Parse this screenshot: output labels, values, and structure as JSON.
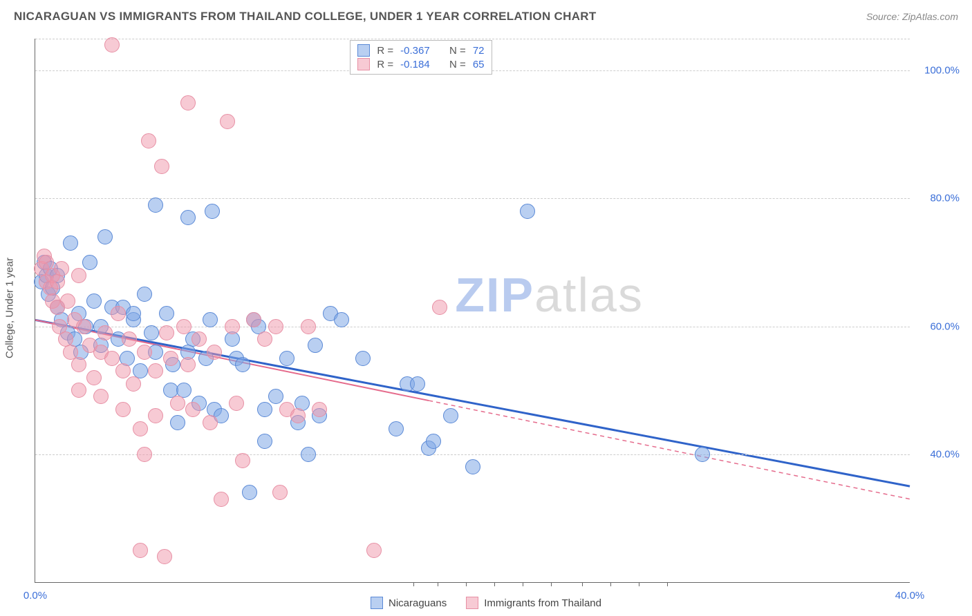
{
  "header": {
    "title": "NICARAGUAN VS IMMIGRANTS FROM THAILAND COLLEGE, UNDER 1 YEAR CORRELATION CHART",
    "source": "Source: ZipAtlas.com"
  },
  "axes": {
    "ylabel": "College, Under 1 year",
    "xmin": 0,
    "xmax": 40,
    "ymin": 20,
    "ymax": 105,
    "xticks": [
      {
        "v": 0,
        "l": "0.0%"
      },
      {
        "v": 40,
        "l": "40.0%"
      }
    ],
    "xtick_minor": [
      17.3,
      18.4,
      19.7,
      21.0,
      22.3,
      23.6,
      25.0,
      26.3,
      27.6,
      28.9
    ],
    "yticks": [
      {
        "v": 40,
        "l": "40.0%"
      },
      {
        "v": 60,
        "l": "60.0%"
      },
      {
        "v": 80,
        "l": "80.0%"
      },
      {
        "v": 100,
        "l": "100.0%"
      },
      {
        "v": 105,
        "l": ""
      }
    ],
    "grid_color": "#cccccc"
  },
  "series": [
    {
      "name": "Nicaraguans",
      "fill": "rgba(128,168,230,0.55)",
      "stroke": "#5a89d6",
      "r": 11,
      "stats": {
        "R": "-0.367",
        "N": "72"
      },
      "trend": {
        "x1": 0,
        "y1": 61,
        "x2": 40,
        "y2": 35,
        "stroke": "#2f63c9",
        "width": 3,
        "dash": "0",
        "solid_to": 40
      },
      "points": [
        [
          0.3,
          67
        ],
        [
          0.4,
          70
        ],
        [
          0.5,
          68
        ],
        [
          0.6,
          65
        ],
        [
          0.7,
          69
        ],
        [
          0.8,
          66
        ],
        [
          1.0,
          68
        ],
        [
          1.0,
          63
        ],
        [
          1.2,
          61
        ],
        [
          1.5,
          59
        ],
        [
          1.6,
          73
        ],
        [
          1.8,
          58
        ],
        [
          2.0,
          62
        ],
        [
          2.1,
          56
        ],
        [
          2.3,
          60
        ],
        [
          2.5,
          70
        ],
        [
          2.7,
          64
        ],
        [
          3.0,
          57
        ],
        [
          3.2,
          74
        ],
        [
          3.5,
          63
        ],
        [
          3.0,
          60
        ],
        [
          3.8,
          58
        ],
        [
          4.0,
          63
        ],
        [
          4.2,
          55
        ],
        [
          4.5,
          61
        ],
        [
          4.8,
          53
        ],
        [
          5.0,
          65
        ],
        [
          5.3,
          59
        ],
        [
          5.5,
          56
        ],
        [
          5.5,
          79
        ],
        [
          6.0,
          62
        ],
        [
          6.2,
          50
        ],
        [
          6.5,
          45
        ],
        [
          6.3,
          54
        ],
        [
          7.0,
          56
        ],
        [
          7.0,
          77
        ],
        [
          7.2,
          58
        ],
        [
          7.5,
          48
        ],
        [
          7.8,
          55
        ],
        [
          8.0,
          61
        ],
        [
          8.1,
          78
        ],
        [
          8.2,
          47
        ],
        [
          8.5,
          46
        ],
        [
          9.0,
          58
        ],
        [
          9.2,
          55
        ],
        [
          9.5,
          54
        ],
        [
          9.8,
          34
        ],
        [
          10.0,
          61
        ],
        [
          10.2,
          60
        ],
        [
          10.5,
          47
        ],
        [
          10.5,
          42
        ],
        [
          11.0,
          49
        ],
        [
          11.5,
          55
        ],
        [
          12.0,
          45
        ],
        [
          12.2,
          48
        ],
        [
          12.5,
          40
        ],
        [
          12.8,
          57
        ],
        [
          13.0,
          46
        ],
        [
          13.5,
          62
        ],
        [
          14.0,
          61
        ],
        [
          15.0,
          55
        ],
        [
          16.5,
          44
        ],
        [
          17.0,
          51
        ],
        [
          18.0,
          41
        ],
        [
          18.2,
          42
        ],
        [
          19.0,
          46
        ],
        [
          20.0,
          38
        ],
        [
          22.5,
          78
        ],
        [
          30.5,
          40
        ],
        [
          17.5,
          51
        ],
        [
          6.8,
          50
        ],
        [
          4.5,
          62
        ]
      ]
    },
    {
      "name": "Immigrants from Thailand",
      "fill": "rgba(240,150,170,0.50)",
      "stroke": "#e78fa4",
      "r": 11,
      "stats": {
        "R": "-0.184",
        "N": "65"
      },
      "trend": {
        "x1": 0,
        "y1": 61,
        "x2": 40,
        "y2": 33,
        "stroke": "#e56b8c",
        "width": 2,
        "dash": "6 5",
        "solid_to": 18
      },
      "points": [
        [
          0.3,
          69
        ],
        [
          0.4,
          71
        ],
        [
          0.5,
          67
        ],
        [
          0.5,
          70
        ],
        [
          0.7,
          66
        ],
        [
          0.8,
          68
        ],
        [
          0.8,
          64
        ],
        [
          1.0,
          63
        ],
        [
          1.0,
          67
        ],
        [
          1.1,
          60
        ],
        [
          1.2,
          69
        ],
        [
          1.4,
          58
        ],
        [
          1.5,
          64
        ],
        [
          1.6,
          56
        ],
        [
          1.8,
          61
        ],
        [
          2.0,
          68
        ],
        [
          2.0,
          54
        ],
        [
          2.2,
          60
        ],
        [
          2.5,
          57
        ],
        [
          2.7,
          52
        ],
        [
          3.0,
          56
        ],
        [
          3.0,
          49
        ],
        [
          3.2,
          59
        ],
        [
          3.5,
          55
        ],
        [
          3.5,
          104
        ],
        [
          4.0,
          53
        ],
        [
          4.0,
          47
        ],
        [
          4.3,
          58
        ],
        [
          4.5,
          51
        ],
        [
          4.8,
          44
        ],
        [
          4.8,
          25
        ],
        [
          5.0,
          56
        ],
        [
          5.0,
          40
        ],
        [
          5.2,
          89
        ],
        [
          5.5,
          53
        ],
        [
          5.5,
          46
        ],
        [
          5.8,
          85
        ],
        [
          5.9,
          24
        ],
        [
          6.0,
          59
        ],
        [
          6.2,
          55
        ],
        [
          6.5,
          48
        ],
        [
          6.8,
          60
        ],
        [
          7.0,
          54
        ],
        [
          7.0,
          95
        ],
        [
          7.2,
          47
        ],
        [
          7.5,
          58
        ],
        [
          8.0,
          45
        ],
        [
          8.2,
          56
        ],
        [
          8.5,
          33
        ],
        [
          8.8,
          92
        ],
        [
          9.0,
          60
        ],
        [
          9.2,
          48
        ],
        [
          9.5,
          39
        ],
        [
          10.0,
          61
        ],
        [
          10.5,
          58
        ],
        [
          11.0,
          60
        ],
        [
          11.2,
          34
        ],
        [
          11.5,
          47
        ],
        [
          12.0,
          46
        ],
        [
          12.5,
          60
        ],
        [
          13.0,
          47
        ],
        [
          15.5,
          25
        ],
        [
          18.5,
          63
        ],
        [
          2.0,
          50
        ],
        [
          3.8,
          62
        ]
      ]
    }
  ],
  "stats_legend": {
    "rlabel": "R =",
    "nlabel": "N ="
  },
  "bottom_legend": {
    "items": [
      "Nicaraguans",
      "Immigrants from Thailand"
    ]
  },
  "watermark": {
    "z": "ZIP",
    "rest": "atlas"
  }
}
